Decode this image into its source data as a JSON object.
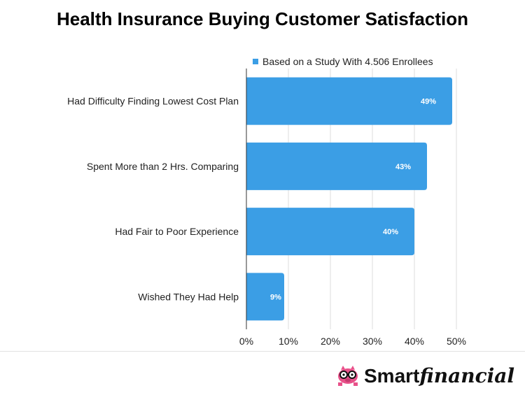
{
  "chart_data": {
    "type": "bar",
    "orientation": "horizontal",
    "title": "Health Insurance Buying Customer Satisfaction",
    "categories": [
      "Had Difficulty Finding Lowest Cost Plan",
      "Spent More than 2 Hrs. Comparing",
      "Had Fair to Poor Experience",
      "Wished They Had Help"
    ],
    "series": [
      {
        "name": "Based on a Study With 4.506 Enrollees",
        "values": [
          49,
          43,
          40,
          9
        ],
        "labels": [
          "49%",
          "43%",
          "40%",
          "9%"
        ]
      }
    ],
    "xlim": [
      0,
      50
    ],
    "xticks": [
      0,
      10,
      20,
      30,
      40,
      50
    ],
    "xtick_labels": [
      "0%",
      "10%",
      "20%",
      "30%",
      "40%",
      "50%"
    ],
    "xlabel": "",
    "ylabel": "",
    "grid": true,
    "legend_position": "top",
    "bar_color": "#3b9ee5"
  },
  "brand": {
    "name_strong": "Smart",
    "name_script": "financial",
    "logo_icon": "piggy-bank-with-glasses-icon",
    "logo_color": "#e8518a"
  }
}
